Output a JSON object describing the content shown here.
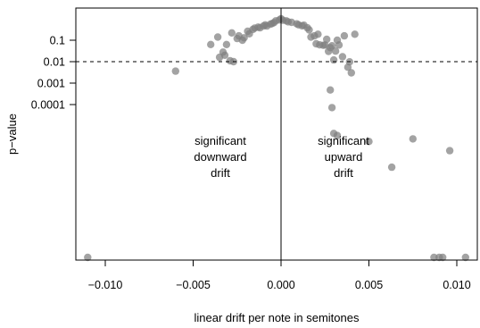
{
  "chart_data": {
    "type": "scatter",
    "title": "",
    "xlabel": "linear drift per note in semitones",
    "ylabel": "p−value",
    "x_ticks": [
      -0.01,
      -0.005,
      0.0,
      0.005,
      0.01
    ],
    "x_tick_labels": [
      "−0.010",
      "−0.005",
      "0.000",
      "0.005",
      "0.010"
    ],
    "y_scale": "log",
    "y_ticks": [
      0.1,
      0.01,
      0.001,
      0.0001
    ],
    "y_tick_labels": [
      "0.1",
      "0.01",
      "0.001",
      "0.0001"
    ],
    "xlim": [
      -0.0113,
      0.0112
    ],
    "threshold": {
      "y": 0.01,
      "style": "dashed"
    },
    "vline": {
      "x": 0.0
    },
    "annotations": {
      "left": [
        "significant",
        "downward",
        "drift"
      ],
      "right": [
        "significant",
        "upward",
        "drift"
      ]
    },
    "point_color": "#7f7f7f",
    "points": [
      [
        -0.011,
        6.3e-20
      ],
      [
        -0.006,
        0.0036
      ],
      [
        -0.004,
        0.063
      ],
      [
        -0.0036,
        0.14
      ],
      [
        -0.0035,
        0.016
      ],
      [
        -0.0033,
        0.028
      ],
      [
        -0.0032,
        0.02
      ],
      [
        -0.0031,
        0.063
      ],
      [
        -0.0029,
        0.011
      ],
      [
        -0.0028,
        0.22
      ],
      [
        -0.0027,
        0.01
      ],
      [
        -0.0025,
        0.12
      ],
      [
        -0.0024,
        0.16
      ],
      [
        -0.0022,
        0.1
      ],
      [
        -0.0021,
        0.13
      ],
      [
        -0.0019,
        0.26
      ],
      [
        -0.0018,
        0.2
      ],
      [
        -0.0016,
        0.32
      ],
      [
        -0.0015,
        0.37
      ],
      [
        -0.0013,
        0.41
      ],
      [
        -0.0012,
        0.38
      ],
      [
        -0.001,
        0.46
      ],
      [
        -0.0009,
        0.52
      ],
      [
        -0.0008,
        0.46
      ],
      [
        -0.0006,
        0.56
      ],
      [
        -0.0005,
        0.6
      ],
      [
        -0.0004,
        0.66
      ],
      [
        -0.0003,
        0.8
      ],
      [
        -0.0001,
        0.88
      ],
      [
        0.0,
        1.0
      ],
      [
        0.0001,
        0.86
      ],
      [
        0.0003,
        0.8
      ],
      [
        0.0004,
        0.72
      ],
      [
        0.0006,
        0.68
      ],
      [
        0.0009,
        0.58
      ],
      [
        0.001,
        0.52
      ],
      [
        0.0012,
        0.47
      ],
      [
        0.0013,
        0.5
      ],
      [
        0.0015,
        0.38
      ],
      [
        0.0016,
        0.3
      ],
      [
        0.0017,
        0.14
      ],
      [
        0.0019,
        0.16
      ],
      [
        0.002,
        0.068
      ],
      [
        0.0021,
        0.19
      ],
      [
        0.0022,
        0.061
      ],
      [
        0.0024,
        0.058
      ],
      [
        0.0025,
        0.06
      ],
      [
        0.0026,
        0.11
      ],
      [
        0.0027,
        0.03
      ],
      [
        0.0028,
        0.045
      ],
      [
        0.0029,
        0.055
      ],
      [
        0.003,
        0.012
      ],
      [
        0.0031,
        0.031
      ],
      [
        0.0032,
        0.1
      ],
      [
        0.0033,
        0.06
      ],
      [
        0.0035,
        0.017
      ],
      [
        0.0036,
        0.16
      ],
      [
        0.0038,
        0.0055
      ],
      [
        0.0039,
        0.0098
      ],
      [
        0.004,
        0.003
      ],
      [
        0.0042,
        0.19
      ],
      [
        0.0028,
        0.00048
      ],
      [
        0.0029,
        7.2e-05
      ],
      [
        0.003,
        4.5e-06
      ],
      [
        0.0032,
        3.6e-06
      ],
      [
        0.005,
        1.9e-06
      ],
      [
        0.0063,
        1.2e-07
      ],
      [
        0.0075,
        2.5e-06
      ],
      [
        0.0087,
        4.5e-20
      ],
      [
        0.009,
        2.2e-12
      ],
      [
        0.0092,
        8e-14
      ],
      [
        0.0096,
        7.1e-07
      ],
      [
        0.0105,
        1e-12
      ]
    ]
  }
}
